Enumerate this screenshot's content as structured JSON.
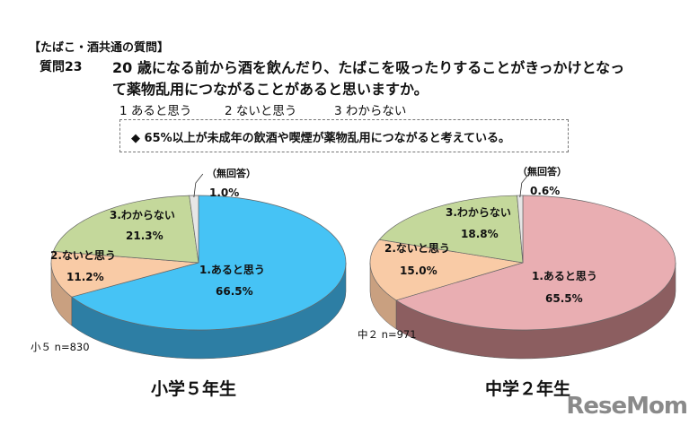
{
  "header": {
    "section": "【たばこ・酒共通の質問】",
    "question_number": "質問23",
    "question_line1": "20 歳になる前から酒を飲んだり、たばこを吸ったりすることがきっかけとなっ",
    "question_line2": "て薬物乱用につながることがあると思いますか。",
    "options": [
      "1  あると思う",
      "2  ないと思う",
      "3  わからない"
    ],
    "note": "◆  65%以上が未成年の飲酒や喫煙が薬物乱用につながると考えている。"
  },
  "chart_data": [
    {
      "type": "pie",
      "title": "小学５年生",
      "sample": "小５ n=830",
      "categories": [
        "1.あると思う",
        "2.ないと思う",
        "3.わからない",
        "（無回答）"
      ],
      "values": [
        66.5,
        11.2,
        21.3,
        1.0
      ],
      "value_labels": [
        "66.5%",
        "11.2%",
        "21.3%",
        "1.0%"
      ],
      "colors": [
        "#46c3f5",
        "#f9cba6",
        "#c4d89b",
        "#e6e6e6"
      ],
      "side_colors": [
        "#2d7ea4",
        "#c9a080",
        "#9aad72",
        "#b5b5b5"
      ]
    },
    {
      "type": "pie",
      "title": "中学２年生",
      "sample": "中２ n=971",
      "categories": [
        "1.あると思う",
        "2.ないと思う",
        "3.わからない",
        "（無回答）"
      ],
      "values": [
        65.5,
        15.0,
        18.8,
        0.6
      ],
      "value_labels": [
        "65.5%",
        "15.0%",
        "18.8%",
        "0.6%"
      ],
      "colors": [
        "#e9aeb2",
        "#f9cba6",
        "#c4d89b",
        "#e6e6e6"
      ],
      "side_colors": [
        "#8c5e60",
        "#c9a080",
        "#9aad72",
        "#b5b5b5"
      ]
    }
  ],
  "watermark": "ReseMom"
}
